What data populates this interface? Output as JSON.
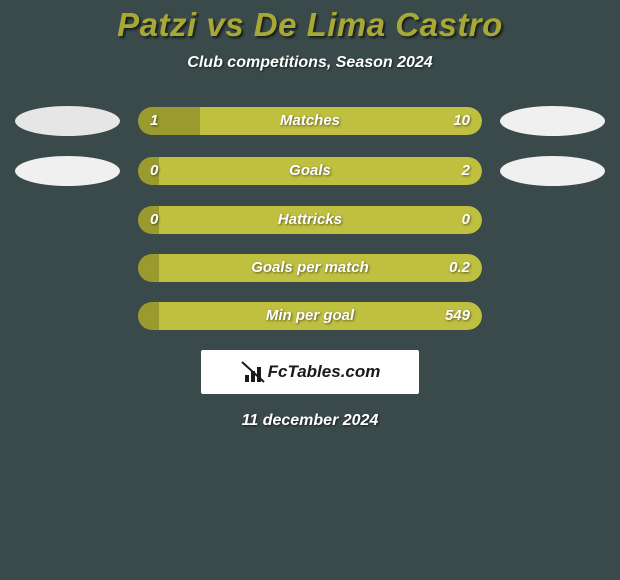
{
  "title": "Patzi vs De Lima Castro",
  "subtitle": "Club competitions, Season 2024",
  "date": "11 december 2024",
  "logo_text": "FcTables.com",
  "colors": {
    "title": "#a8a835",
    "text": "#ffffff",
    "bar_left": "#9a9a2e",
    "bar_right": "#bfbf40",
    "badge_left": "#e6e6e6",
    "badge_right": "#f0f0f0",
    "background": "#3a4a4a",
    "logo_bg": "#ffffff",
    "logo_text": "#1a1a1a"
  },
  "rows": [
    {
      "label": "Matches",
      "left_val": "1",
      "right_val": "10",
      "left_pct": 18,
      "has_badges": true,
      "left_badge_shade": "dark",
      "right_badge_shade": "light"
    },
    {
      "label": "Goals",
      "left_val": "0",
      "right_val": "2",
      "left_pct": 6,
      "has_badges": true,
      "left_badge_shade": "light",
      "right_badge_shade": "light"
    },
    {
      "label": "Hattricks",
      "left_val": "0",
      "right_val": "0",
      "left_pct": 6,
      "has_badges": false
    },
    {
      "label": "Goals per match",
      "left_val": "",
      "right_val": "0.2",
      "left_pct": 6,
      "has_badges": false
    },
    {
      "label": "Min per goal",
      "left_val": "",
      "right_val": "549",
      "left_pct": 6,
      "has_badges": false
    }
  ]
}
